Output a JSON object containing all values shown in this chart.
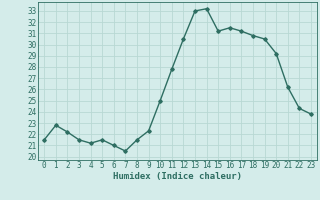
{
  "x": [
    0,
    1,
    2,
    3,
    4,
    5,
    6,
    7,
    8,
    9,
    10,
    11,
    12,
    13,
    14,
    15,
    16,
    17,
    18,
    19,
    20,
    21,
    22,
    23
  ],
  "y": [
    21.5,
    22.8,
    22.2,
    21.5,
    21.2,
    21.5,
    21.0,
    20.5,
    21.5,
    22.3,
    25.0,
    27.8,
    30.5,
    33.0,
    33.2,
    31.2,
    31.5,
    31.2,
    30.8,
    30.5,
    29.2,
    26.2,
    24.3,
    23.8
  ],
  "line_color": "#2e6e62",
  "bg_color": "#d4ecea",
  "grid_color": "#b8d8d4",
  "xlabel": "Humidex (Indice chaleur)",
  "ylabel_ticks": [
    20,
    21,
    22,
    23,
    24,
    25,
    26,
    27,
    28,
    29,
    30,
    31,
    32,
    33
  ],
  "ylim": [
    19.7,
    33.8
  ],
  "xlim": [
    -0.5,
    23.5
  ],
  "marker": "D",
  "marker_size": 1.8,
  "line_width": 1.0,
  "tick_fontsize": 5.5,
  "xlabel_fontsize": 6.5
}
